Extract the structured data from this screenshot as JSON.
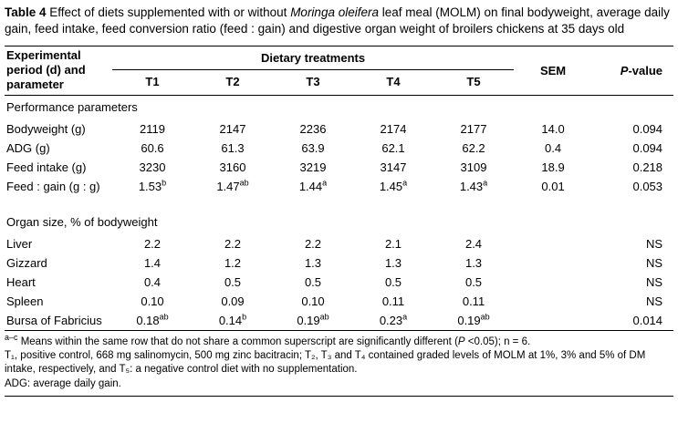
{
  "caption": {
    "label": "Table 4",
    "before_italic": " Effect of diets supplemented with or without ",
    "italic": "Moringa oleifera",
    "after_italic": " leaf meal (MOLM) on final bodyweight, average daily gain, feed intake, feed conversion ratio (feed : gain) and digestive organ weight of broilers chickens at 35 days old"
  },
  "table": {
    "header": {
      "col1": "Experimental period (d) and parameter",
      "group": "Dietary treatments",
      "treatments": [
        "T1",
        "T2",
        "T3",
        "T4",
        "T5"
      ],
      "sem": "SEM",
      "p_italic": "P",
      "p_rest": "-value"
    },
    "sections": [
      {
        "title": "Performance parameters",
        "rows": [
          {
            "label": "Bodyweight (g)",
            "values": [
              "2119",
              "2147",
              "2236",
              "2174",
              "2177"
            ],
            "sem": "14.0",
            "p": "0.094"
          },
          {
            "label": "ADG (g)",
            "values": [
              "60.6",
              "61.3",
              "63.9",
              "62.1",
              "62.2"
            ],
            "sem": "0.4",
            "p": "0.094"
          },
          {
            "label": "Feed intake (g)",
            "values": [
              "3230",
              "3160",
              "3219",
              "3147",
              "3109"
            ],
            "sem": "18.9",
            "p": "0.218"
          },
          {
            "label": "Feed : gain (g : g)",
            "values": [
              "1.53^b",
              "1.47^ab",
              "1.44^a",
              "1.45^a",
              "1.43^a"
            ],
            "sem": "0.01",
            "p": "0.053"
          }
        ]
      },
      {
        "title": "Organ size, % of bodyweight",
        "rows": [
          {
            "label": "Liver",
            "values": [
              "2.2",
              "2.2",
              "2.2",
              "2.1",
              "2.4"
            ],
            "sem": "",
            "p": "NS"
          },
          {
            "label": "Gizzard",
            "values": [
              "1.4",
              "1.2",
              "1.3",
              "1.3",
              "1.3"
            ],
            "sem": "",
            "p": "NS"
          },
          {
            "label": "Heart",
            "values": [
              "0.4",
              "0.5",
              "0.5",
              "0.5",
              "0.5"
            ],
            "sem": "",
            "p": "NS"
          },
          {
            "label": "Spleen",
            "values": [
              "0.10",
              "0.09",
              "0.10",
              "0.11",
              "0.11"
            ],
            "sem": "",
            "p": "NS"
          },
          {
            "label": "Bursa of Fabricius",
            "values": [
              "0.18^ab",
              "0.14^b",
              "0.19^ab",
              "0.23^a",
              "0.19^ab"
            ],
            "sem": "",
            "p": "0.014"
          }
        ]
      }
    ]
  },
  "footnotes": {
    "fn1": {
      "sup": "a–c",
      "text1": " Means within the same row that do not share a common superscript are significantly different (",
      "italic": "P",
      "text2": " <0.05); n = 6."
    },
    "fn2": "T₁, positive control, 668 mg salinomycin, 500 mg zinc bacitracin; T₂, T₃ and T₄ contained graded levels of MOLM at 1%, 3% and 5% of DM intake, respectively, and T₅: a negative control diet with no supplementation.",
    "fn3": "ADG: average daily gain."
  }
}
